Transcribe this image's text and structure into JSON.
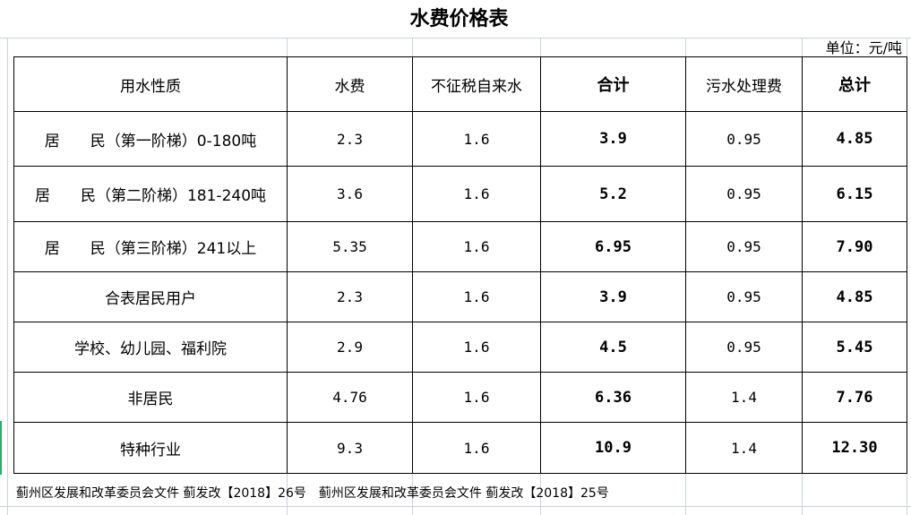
{
  "title": "水费价格表",
  "unit": "单位：元/吨",
  "headers": [
    "用水性质",
    "水费",
    "不征税自来水",
    "合计",
    "污水处理费",
    "总计"
  ],
  "rows": [
    [
      "居　　民（第一阶梯）0-180吨",
      "2.3",
      "1.6",
      "3.9",
      "0.95",
      "4.85"
    ],
    [
      "居　　民（第二阶梯）181-240吨",
      "3.6",
      "1.6",
      "5.2",
      "0.95",
      "6.15"
    ],
    [
      "居　　民（第三阶梯）241以上",
      "5.35",
      "1.6",
      "6.95",
      "0.95",
      "7.90"
    ],
    [
      "合表居民用户",
      "2.3",
      "1.6",
      "3.9",
      "0.95",
      "4.85"
    ],
    [
      "学校、幼儿园、福利院",
      "2.9",
      "1.6",
      "4.5",
      "0.95",
      "5.45"
    ],
    [
      "非居民",
      "4.76",
      "1.6",
      "6.36",
      "1.4",
      "7.76"
    ],
    [
      "特种行业",
      "9.3",
      "1.6",
      "10.9",
      "1.4",
      "12.30"
    ]
  ],
  "footer": "蓟州区发展和改革委员会文件 蓟发改【2018】26号　蓟州区发展和改革委员会文件 蓟发改【2018】25号"
}
